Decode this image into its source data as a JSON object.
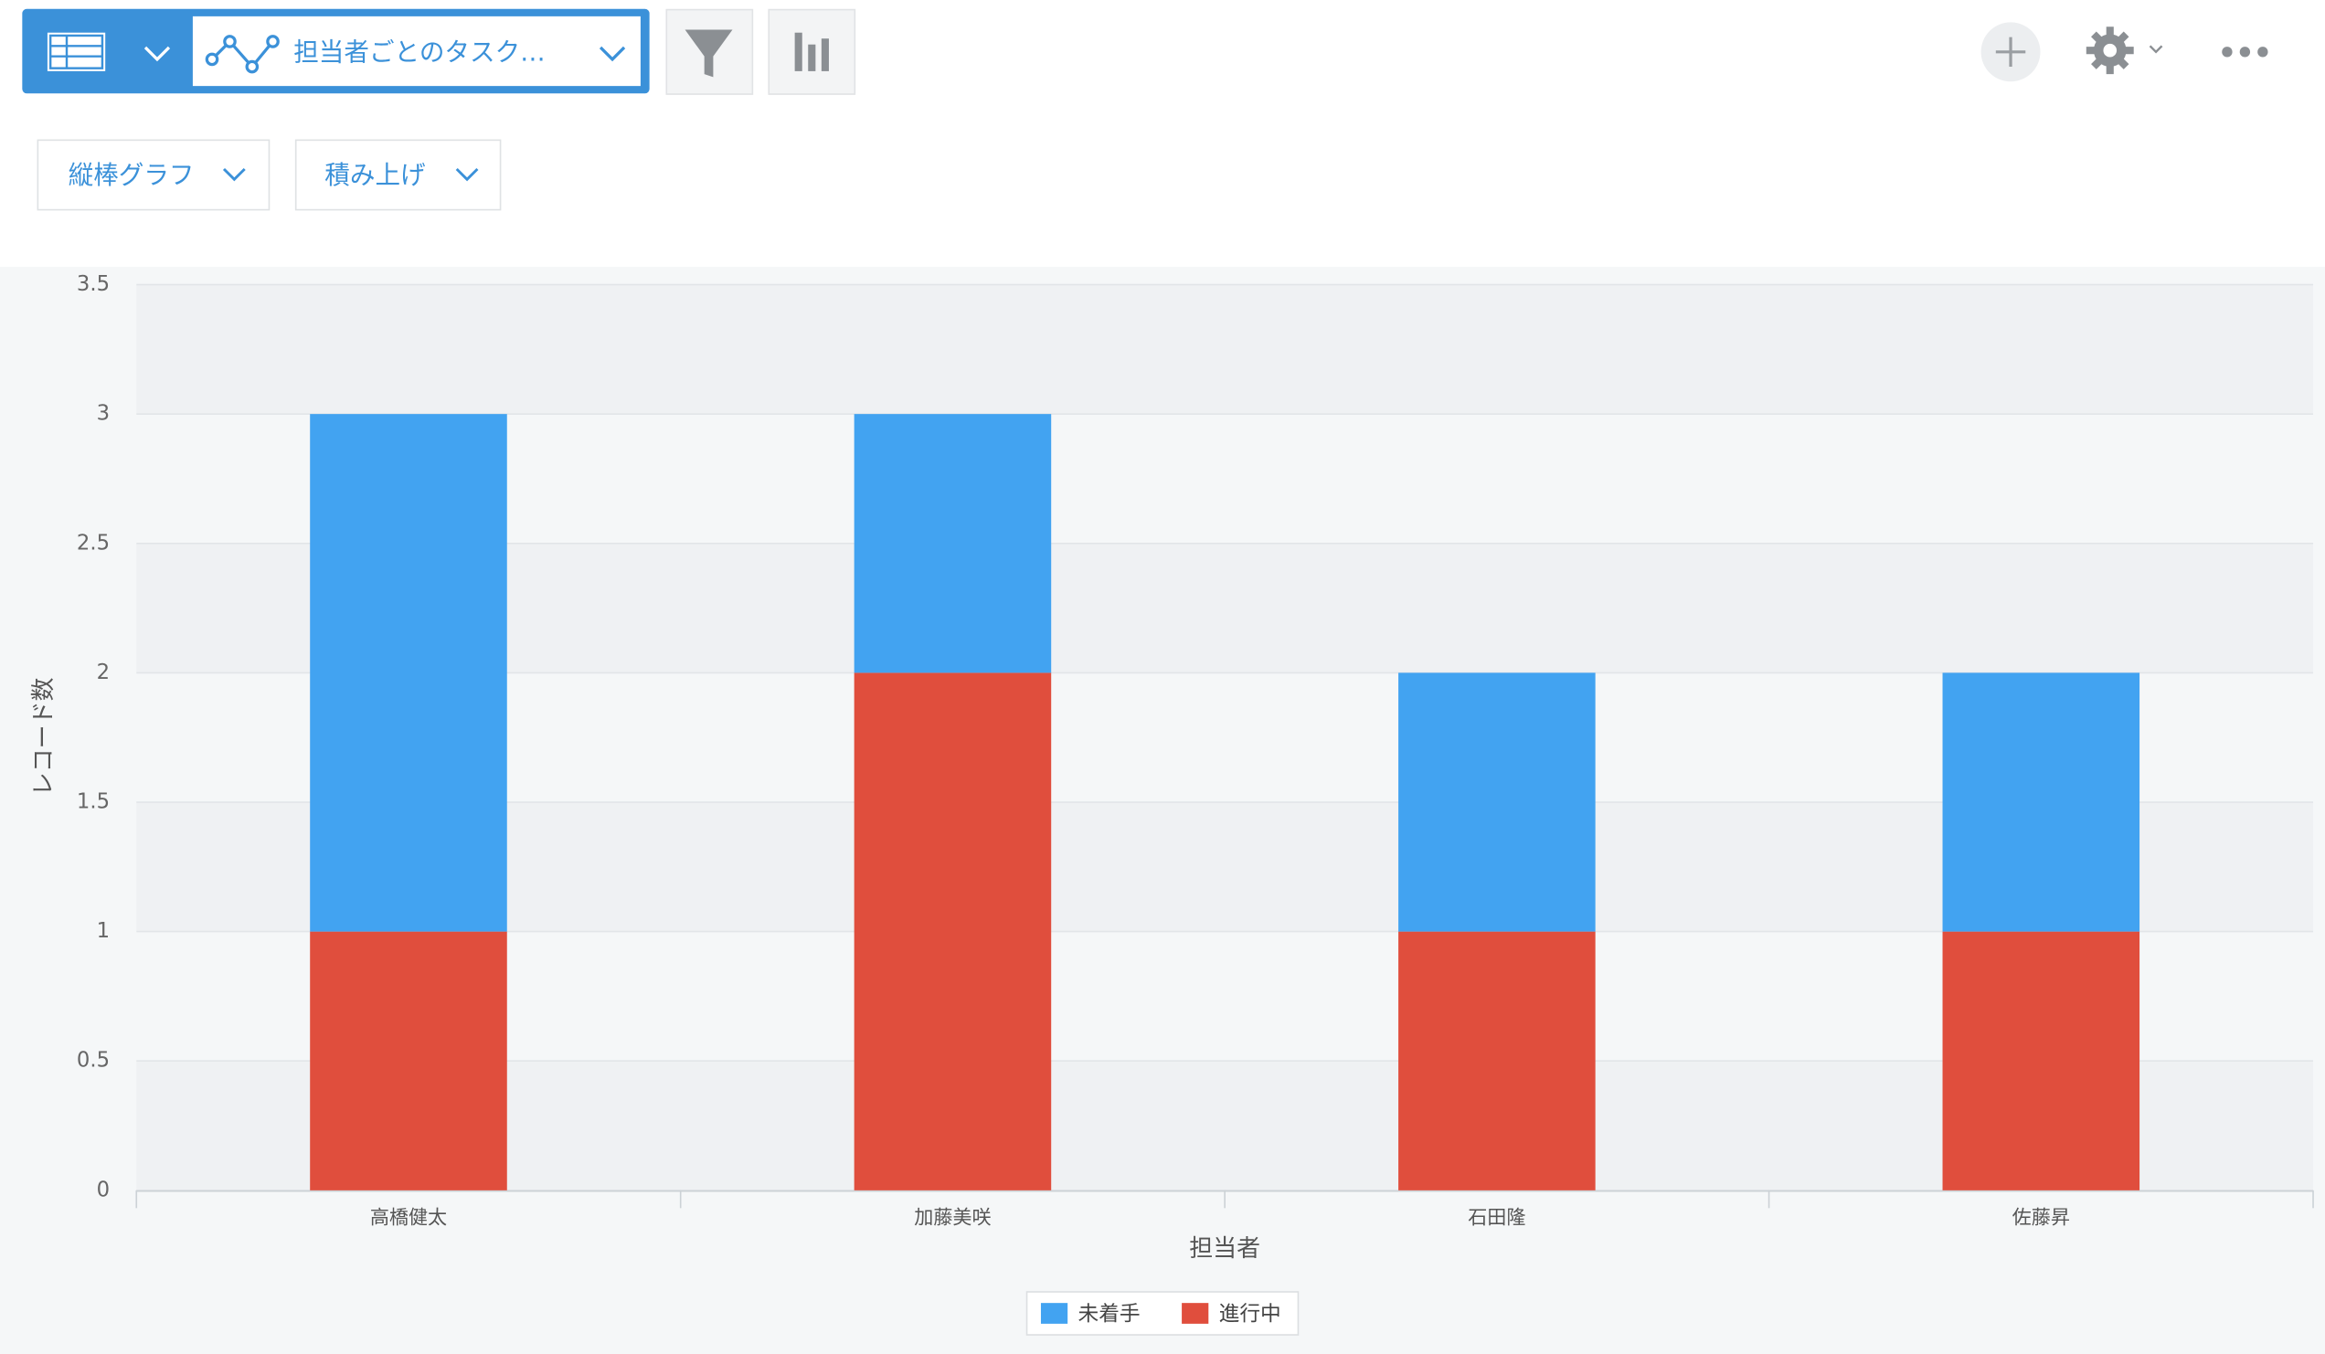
{
  "toolbar": {
    "view_name": "担当者ごとのタスク…",
    "chart_type": "縦棒グラフ",
    "stack_mode": "積み上げ"
  },
  "chart_data": {
    "type": "bar",
    "stacked": true,
    "x_label": "担当者",
    "y_label": "レコード数",
    "categories": [
      "高橋健太",
      "加藤美咲",
      "石田隆",
      "佐藤昇"
    ],
    "series": [
      {
        "name": "未着手",
        "color": "#42a3f1",
        "values": [
          2,
          1,
          1,
          1
        ]
      },
      {
        "name": "進行中",
        "color": "#e04e3d",
        "values": [
          1,
          2,
          1,
          1
        ]
      }
    ],
    "ylim": [
      0,
      3.5
    ],
    "yticks": [
      0,
      0.5,
      1,
      1.5,
      2,
      2.5,
      3,
      3.5
    ],
    "grid": true,
    "legend": "bottom"
  }
}
